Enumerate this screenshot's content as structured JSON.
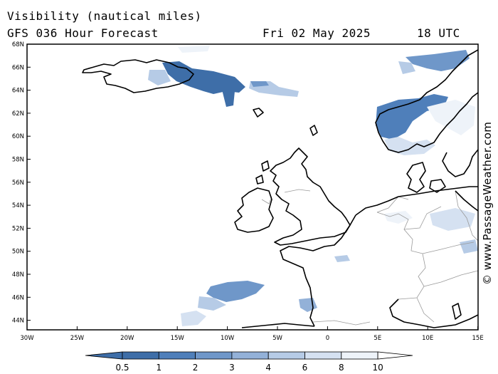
{
  "header": {
    "title": "Visibility (nautical miles)",
    "subtitle": "GFS 036 Hour Forecast",
    "date": "Fri 02 May 2025",
    "time": "18 UTC"
  },
  "map": {
    "lat_labels": [
      "68N",
      "66N",
      "64N",
      "62N",
      "60N",
      "58N",
      "56N",
      "54N",
      "52N",
      "50N",
      "48N",
      "46N",
      "44N"
    ],
    "lon_labels": [
      "30W",
      "25W",
      "20W",
      "15W",
      "10W",
      "5W",
      "0",
      "5E",
      "10E",
      "15E"
    ],
    "lon_range": [
      -30,
      15
    ],
    "lat_range": [
      43,
      68
    ]
  },
  "legend": {
    "labels": [
      "0.5",
      "1",
      "2",
      "3",
      "4",
      "6",
      "8",
      "10"
    ],
    "colors": [
      "#3e6ea8",
      "#4f7fba",
      "#6f97c9",
      "#93b1d8",
      "#b6cbe6",
      "#d5e1f1",
      "#eef3f9"
    ]
  },
  "credit": "© www.PassageWeather.com"
}
